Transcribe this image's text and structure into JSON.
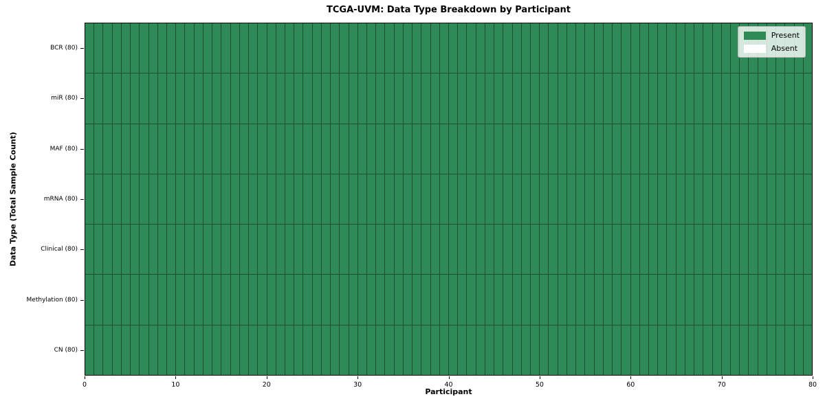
{
  "chart_data": {
    "type": "heatmap",
    "title": "TCGA-UVM: Data Type Breakdown by Participant",
    "xlabel": "Participant",
    "ylabel": "Data Type (Total Sample Count)",
    "x_range": [
      0,
      80
    ],
    "x_ticks": [
      0,
      10,
      20,
      30,
      40,
      50,
      60,
      70,
      80
    ],
    "n_participants": 80,
    "rows": [
      {
        "label": "BCR (80)",
        "total_samples": 80,
        "present": 80,
        "absent": 0
      },
      {
        "label": "miR (80)",
        "total_samples": 80,
        "present": 80,
        "absent": 0
      },
      {
        "label": "MAF (80)",
        "total_samples": 80,
        "present": 80,
        "absent": 0
      },
      {
        "label": "mRNA (80)",
        "total_samples": 80,
        "present": 80,
        "absent": 0
      },
      {
        "label": "Clinical (80)",
        "total_samples": 80,
        "present": 80,
        "absent": 0
      },
      {
        "label": "Methylation (80)",
        "total_samples": 80,
        "present": 80,
        "absent": 0
      },
      {
        "label": "CN (80)",
        "total_samples": 80,
        "present": 80,
        "absent": 0
      }
    ],
    "legend": {
      "position": "upper right",
      "entries": [
        {
          "label": "Present",
          "color": "#2e8b57"
        },
        {
          "label": "Absent",
          "color": "#ffffff"
        }
      ]
    },
    "colors": {
      "present": "#2e8b57",
      "absent": "#ffffff",
      "cell_edge": "#1d4f33",
      "spine": "#000000"
    },
    "grid_lines": "per-cell borders",
    "all_cells_present": true
  }
}
